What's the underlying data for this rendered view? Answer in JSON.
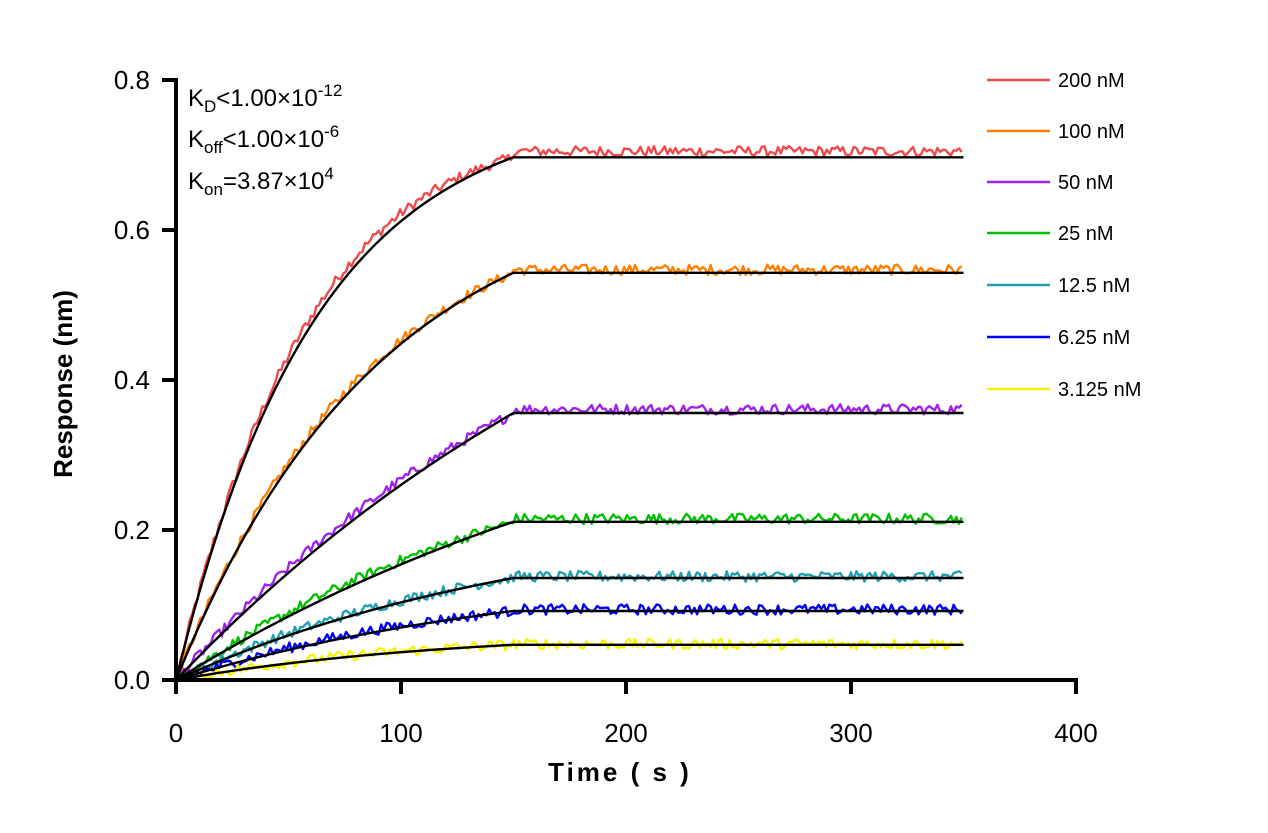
{
  "chart_data": {
    "type": "line",
    "title": "",
    "xlabel": "Time ( s )",
    "ylabel": "Response (nm)",
    "xlim": [
      0,
      400
    ],
    "ylim": [
      0,
      0.8
    ],
    "xticks": [
      "0",
      "100",
      "200",
      "300",
      "400"
    ],
    "xtick_values": [
      0,
      100,
      200,
      300,
      400
    ],
    "yticks": [
      "0.0",
      "0.2",
      "0.4",
      "0.6",
      "0.8"
    ],
    "ytick_values": [
      0,
      0.2,
      0.4,
      0.6,
      0.8
    ],
    "grid": false,
    "legend_position": "right",
    "association_end_s": 150,
    "data_end_s": 350,
    "annotations": {
      "kd_label": "K",
      "kd_sub": "D",
      "kd_value": "<1.00×10",
      "kd_exp": "-12",
      "koff_label": "K",
      "koff_sub": "off",
      "koff_value": "<1.00×10",
      "koff_exp": "-6",
      "kon_label": "K",
      "kon_sub": "on",
      "kon_value": "=3.87×10",
      "kon_exp": "4"
    },
    "fit_color": "#000000",
    "series": [
      {
        "name": "200 nM",
        "color": "#f04a4a",
        "plateau": 0.697,
        "kobs": 0.016,
        "data_offset": 0.008
      },
      {
        "name": "100 nM",
        "color": "#ff8000",
        "plateau": 0.543,
        "kobs": 0.011,
        "data_offset": 0.004
      },
      {
        "name": "50 nM",
        "color": "#a020f0",
        "plateau": 0.356,
        "kobs": 0.004,
        "data_offset": 0.005
      },
      {
        "name": "25 nM",
        "color": "#00c000",
        "plateau": 0.211,
        "kobs": 0.004,
        "data_offset": 0.004
      },
      {
        "name": "12.5 nM",
        "color": "#20a0b0",
        "plateau": 0.136,
        "kobs": 0.006,
        "data_offset": 0.002
      },
      {
        "name": "6.25 nM",
        "color": "#0000ff",
        "plateau": 0.092,
        "kobs": 0.006,
        "data_offset": 0.002
      },
      {
        "name": "3.125 nM",
        "color": "#f5f500",
        "plateau": 0.047,
        "kobs": 0.008,
        "data_offset": 0.001
      }
    ]
  }
}
